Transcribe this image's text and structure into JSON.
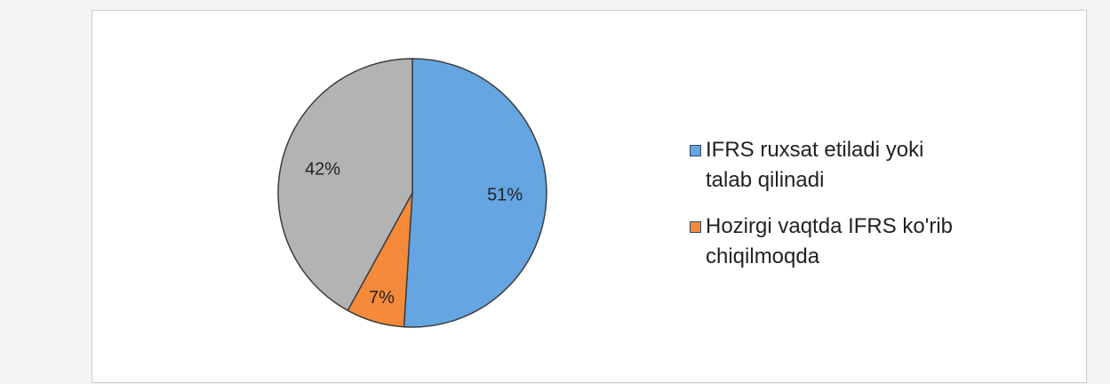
{
  "chart_data": {
    "type": "pie",
    "title": "",
    "start_angle_deg": 0,
    "slices": [
      {
        "label": "IFRS ruxsat etiladi yoki talab qilinadi",
        "value": 51,
        "value_label": "51%",
        "color": "#65a5e2",
        "in_legend": true
      },
      {
        "label": "Hozirgi vaqtda IFRS ko'rib chiqilmoqda",
        "value": 7,
        "value_label": "7%",
        "color": "#f48a3a",
        "in_legend": true
      },
      {
        "label": "",
        "value": 42,
        "value_label": "42%",
        "color": "#b3b3b3",
        "in_legend": false
      }
    ],
    "legend_position": "right"
  }
}
